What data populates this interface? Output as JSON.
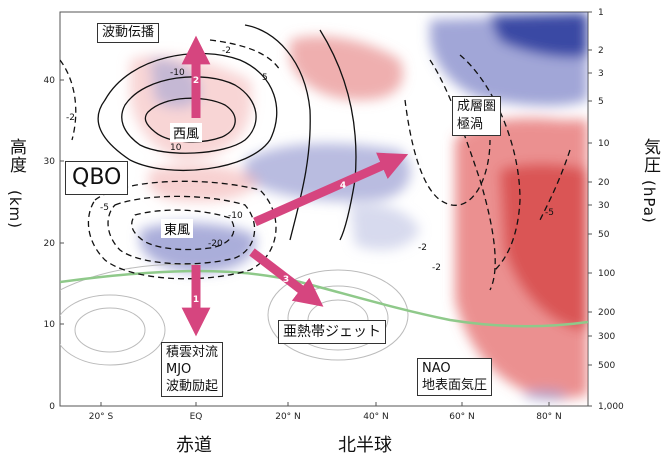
{
  "y_axis_left": {
    "label": "高度",
    "unit": "(km)",
    "ticks": [
      "0",
      "10",
      "20",
      "30",
      "40"
    ]
  },
  "y_axis_right": {
    "label": "気圧",
    "unit": "(hPa)",
    "ticks": [
      "1",
      "2",
      "3",
      "5",
      "10",
      "20",
      "30",
      "50",
      "100",
      "200",
      "300",
      "500",
      "1,000"
    ]
  },
  "x_axis": {
    "ticks": [
      "20° S",
      "EQ",
      "20° N",
      "40° N",
      "60° N",
      "80° N"
    ],
    "label_equator": "赤道",
    "label_nh": "北半球"
  },
  "labels": {
    "wave_propagation": "波動伝播",
    "westerly": "西風",
    "easterly": "東風",
    "qbo": "QBO",
    "polar_vortex_line1": "成層圏",
    "polar_vortex_line2": "極渦",
    "subtropical_jet": "亜熱帯ジェット",
    "convection_line1": "積雲対流",
    "convection_line2": "MJO",
    "convection_line3": "波動励起",
    "nao_line1": "NAO",
    "nao_line2": "地表面気圧"
  },
  "arrows": [
    "1",
    "2",
    "3",
    "4"
  ],
  "contour_labels": [
    "-2",
    "-2",
    "5",
    "-10",
    "10",
    "-10",
    "-20",
    "-5",
    "-2",
    "-5",
    "-2"
  ],
  "colors": {
    "warm": "#d94a4a",
    "cold": "#3b4aa8",
    "arrow": "#d6457f",
    "jet_line": "#8fc98a"
  }
}
